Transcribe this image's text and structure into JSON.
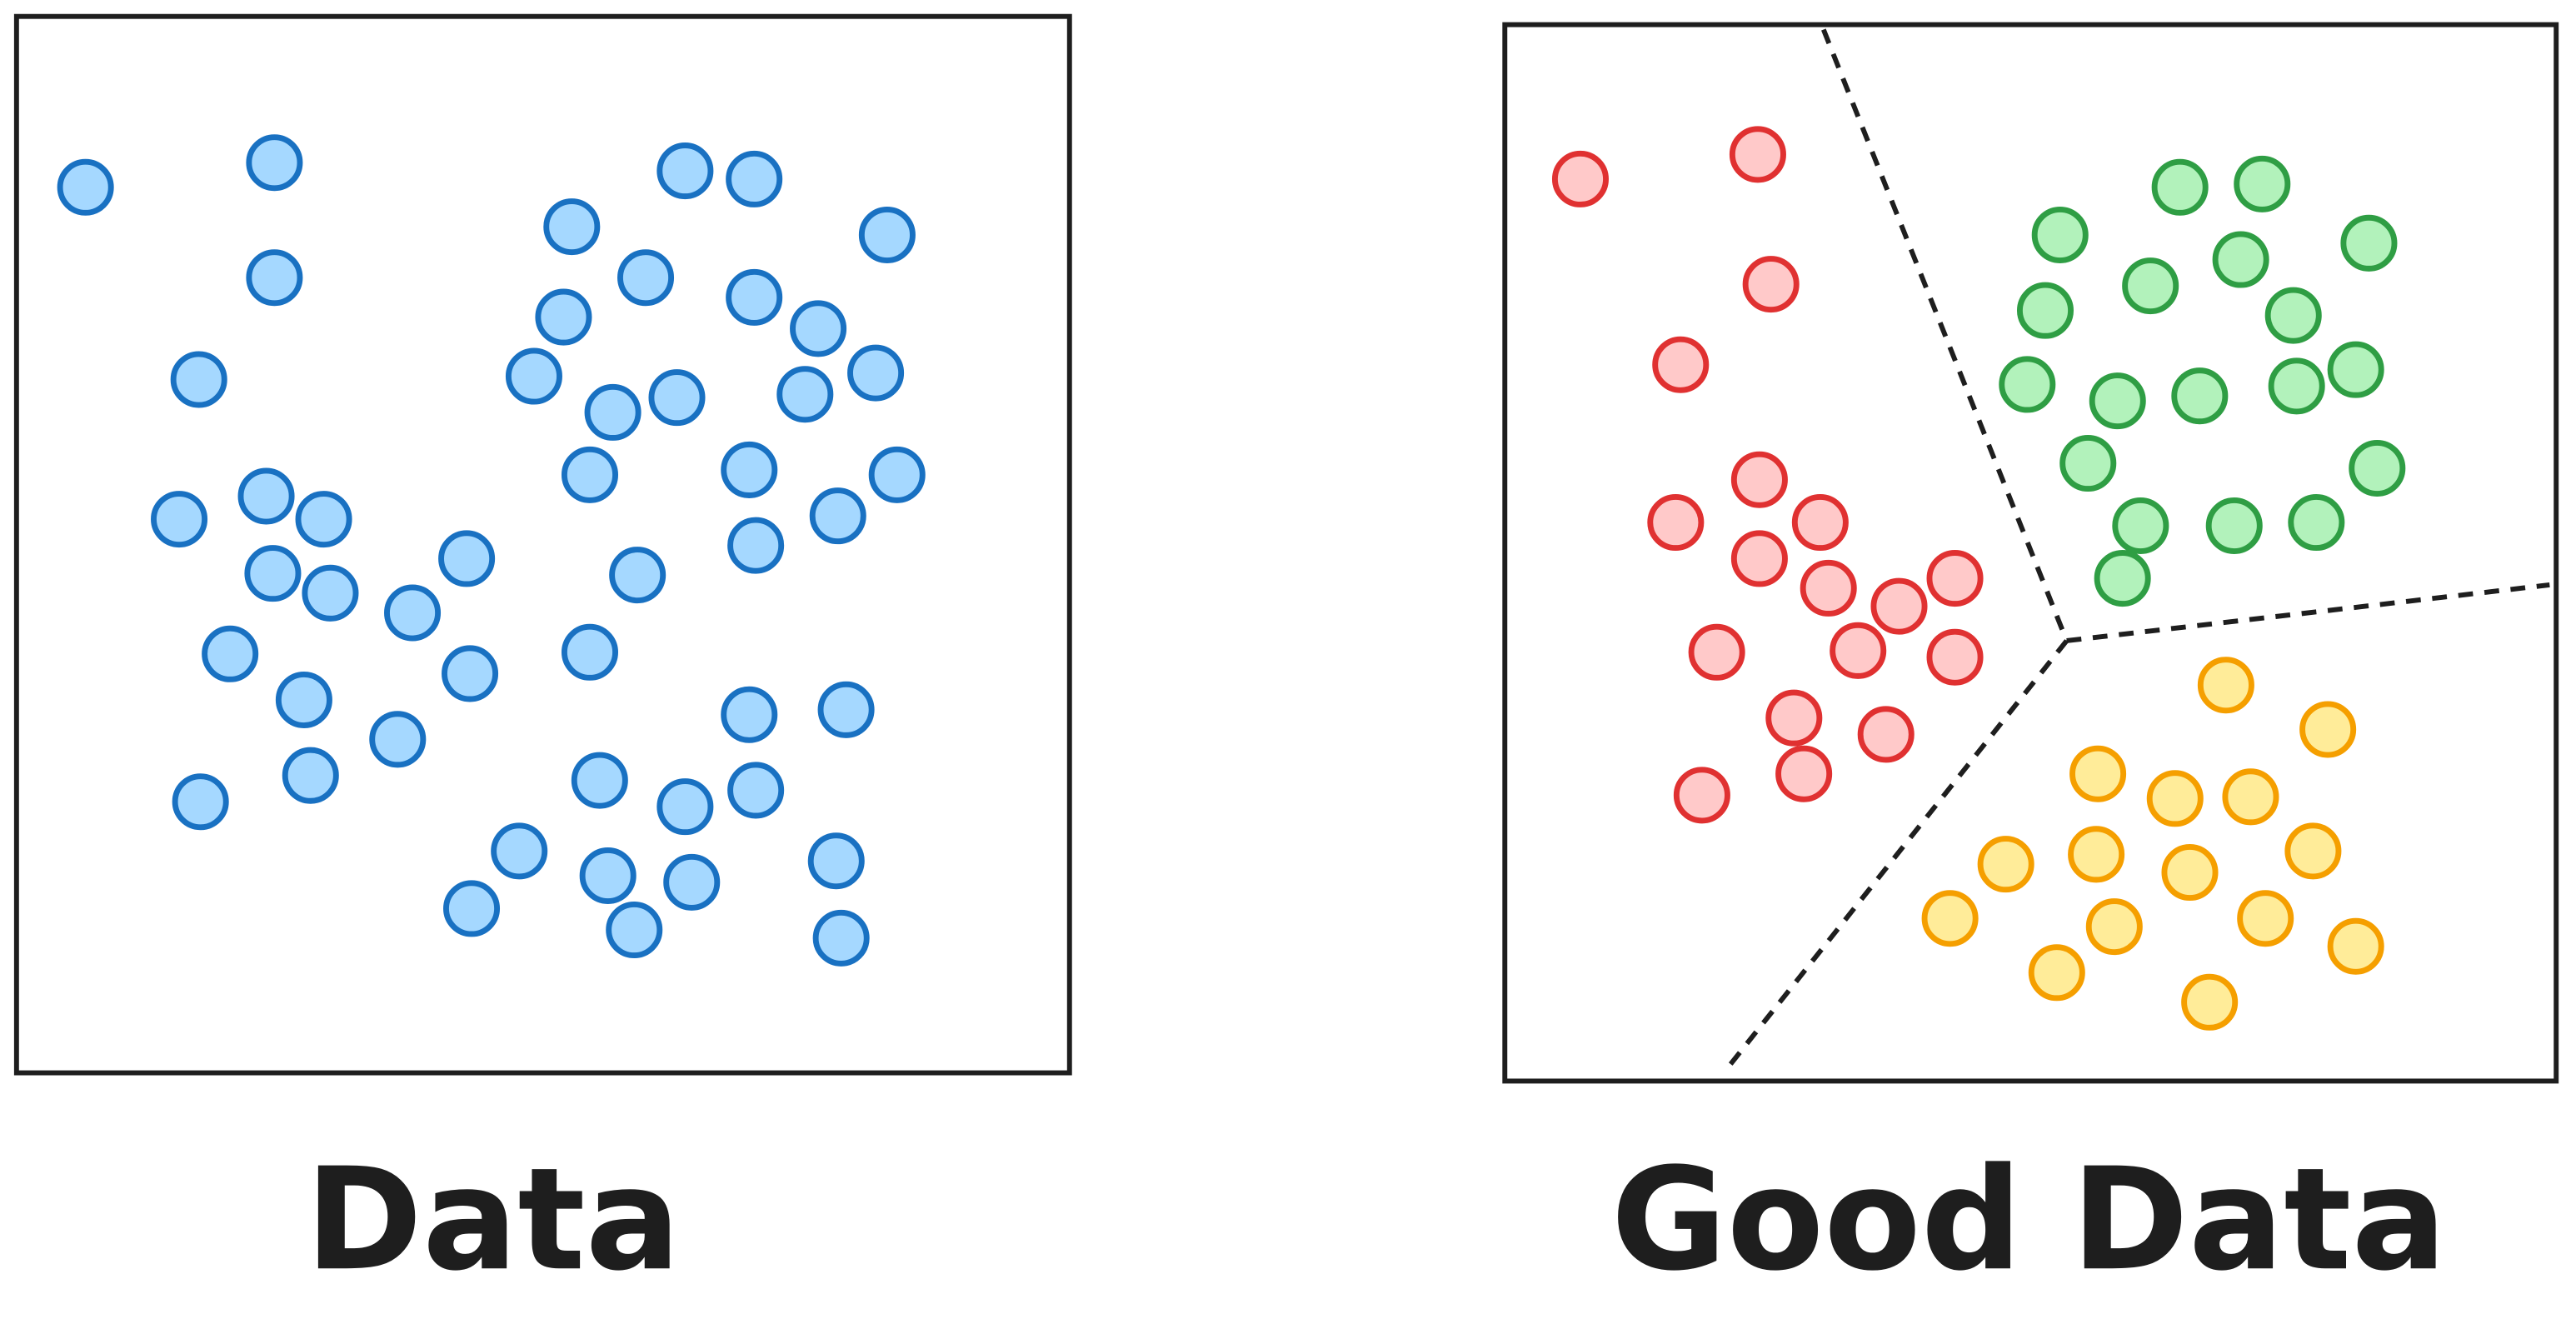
{
  "panels": [
    {
      "label": "Data"
    },
    {
      "label": "Good Data"
    }
  ]
}
